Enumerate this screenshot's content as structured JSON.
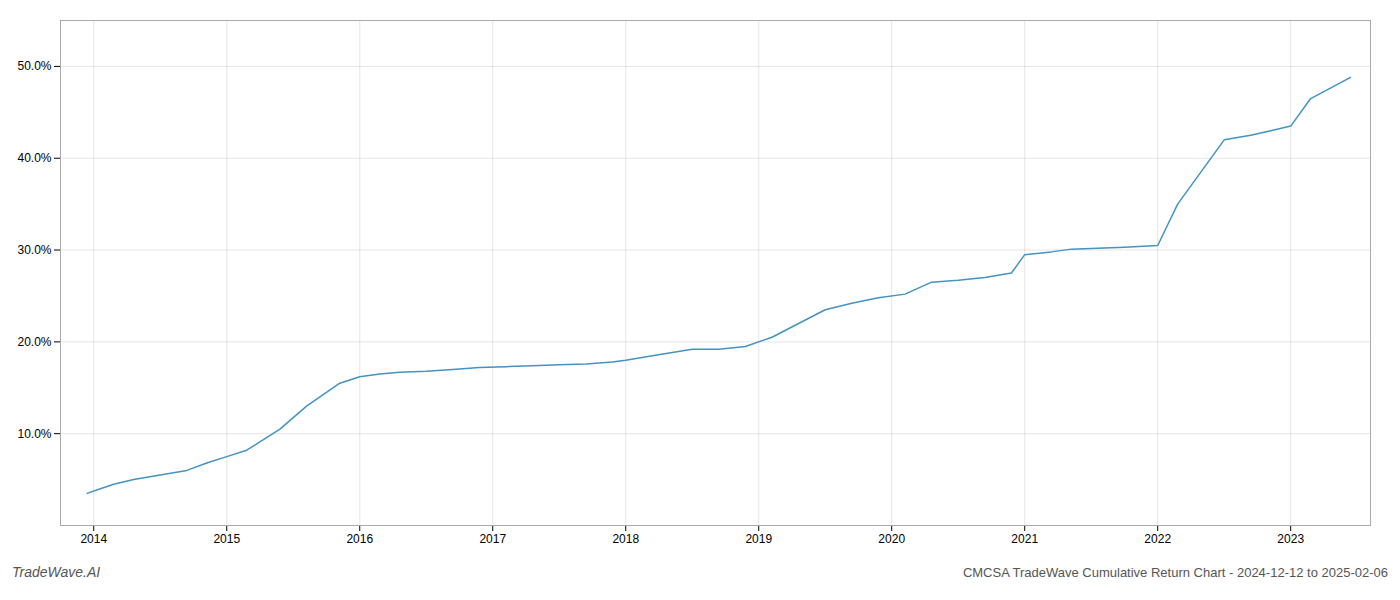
{
  "chart_data": {
    "type": "line",
    "title": "CMCSA TradeWave Cumulative Return Chart - 2024-12-12 to 2025-02-06",
    "annotations": [
      "TradeWave.AI"
    ],
    "color": "#4393c3",
    "x": [
      2013.95,
      2014.05,
      2014.15,
      2014.3,
      2014.5,
      2014.7,
      2014.85,
      2015.0,
      2015.15,
      2015.4,
      2015.6,
      2015.85,
      2016.0,
      2016.15,
      2016.3,
      2016.5,
      2016.7,
      2016.9,
      2017.1,
      2017.3,
      2017.5,
      2017.7,
      2017.9,
      2018.0,
      2018.2,
      2018.5,
      2018.7,
      2018.9,
      2019.1,
      2019.3,
      2019.5,
      2019.7,
      2019.9,
      2020.1,
      2020.3,
      2020.5,
      2020.7,
      2020.9,
      2021.0,
      2021.2,
      2021.35,
      2021.55,
      2021.75,
      2022.0,
      2022.15,
      2022.5,
      2022.7,
      2022.85,
      2023.0,
      2023.15,
      2023.45
    ],
    "values": [
      3.5,
      4.0,
      4.5,
      5.0,
      5.5,
      6.0,
      6.8,
      7.5,
      8.2,
      10.5,
      13.0,
      15.5,
      16.2,
      16.5,
      16.7,
      16.8,
      17.0,
      17.2,
      17.3,
      17.4,
      17.5,
      17.6,
      17.8,
      18.0,
      18.5,
      19.2,
      19.2,
      19.5,
      20.5,
      22.0,
      23.5,
      24.2,
      24.8,
      25.2,
      26.5,
      26.7,
      27.0,
      27.5,
      29.5,
      29.8,
      30.1,
      30.2,
      30.3,
      30.5,
      35.0,
      42.0,
      42.5,
      43.0,
      43.5,
      46.5,
      48.8
    ],
    "xlim": [
      2013.75,
      2023.6
    ],
    "ylim": [
      0,
      55
    ],
    "xticks": [
      2014,
      2015,
      2016,
      2017,
      2018,
      2019,
      2020,
      2021,
      2022,
      2023
    ],
    "yticks": [
      {
        "value": 10.0,
        "label": "10.0%"
      },
      {
        "value": 20.0,
        "label": "20.0%"
      },
      {
        "value": 30.0,
        "label": "30.0%"
      },
      {
        "value": 40.0,
        "label": "40.0%"
      },
      {
        "value": 50.0,
        "label": "50.0%"
      }
    ],
    "grid": true
  }
}
